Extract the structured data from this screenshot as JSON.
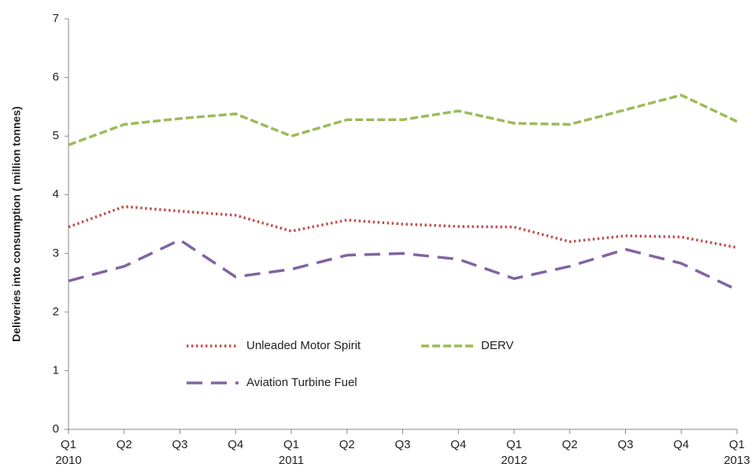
{
  "chart_data": {
    "type": "line",
    "y_label": "Deliveries into consumption  ( million tonnes)",
    "categories": [
      "Q1",
      "Q2",
      "Q3",
      "Q4",
      "Q1",
      "Q2",
      "Q3",
      "Q4",
      "Q1",
      "Q2",
      "Q3",
      "Q4",
      "Q1"
    ],
    "years": [
      "2010",
      null,
      null,
      null,
      "2011",
      null,
      null,
      null,
      "2012",
      null,
      null,
      null,
      "2013"
    ],
    "series": [
      {
        "name": "Unleaded Motor Spirit",
        "color": "#c0504d",
        "dash": "dotted",
        "values": [
          3.45,
          3.8,
          3.72,
          3.65,
          3.38,
          3.57,
          3.5,
          3.46,
          3.45,
          3.2,
          3.3,
          3.28,
          3.1
        ]
      },
      {
        "name": "DERV",
        "color": "#9bbb59",
        "dash": "dashed",
        "values": [
          4.85,
          5.2,
          5.3,
          5.38,
          5.0,
          5.28,
          5.28,
          5.43,
          5.22,
          5.2,
          5.45,
          5.7,
          5.25
        ]
      },
      {
        "name": "Aviation Turbine Fuel",
        "color": "#8064a2",
        "dash": "long-dashed",
        "values": [
          2.53,
          2.78,
          3.23,
          2.6,
          2.73,
          2.97,
          3.0,
          2.9,
          2.57,
          2.78,
          3.07,
          2.83,
          2.38
        ]
      }
    ],
    "ylim": [
      0,
      7
    ],
    "yticks": [
      0,
      1,
      2,
      3,
      4,
      5,
      6,
      7
    ],
    "grid": false,
    "legend": "lower left"
  }
}
